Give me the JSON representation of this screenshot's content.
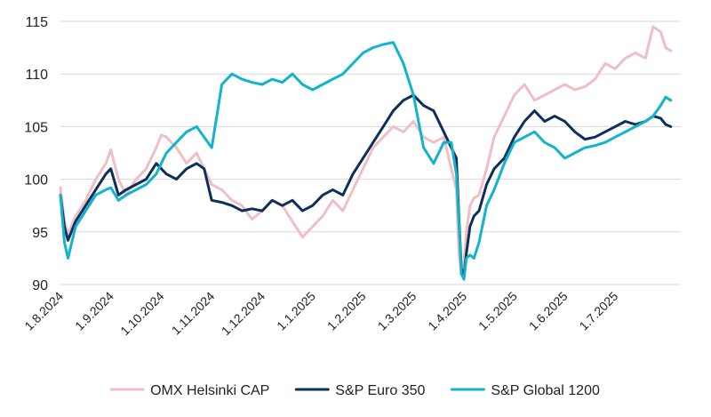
{
  "chart_data": {
    "type": "line",
    "title": "",
    "xlabel": "",
    "ylabel": "",
    "ylim": [
      90,
      115
    ],
    "yticks": [
      90,
      95,
      100,
      105,
      110,
      115
    ],
    "grid": "horizontal",
    "x_tick_labels": [
      "1.8.2024",
      "1.9.2024",
      "1.10.2024",
      "1.11.2024",
      "1.12.2024",
      "1.1.2025",
      "1.2.2025",
      "1.3.2025",
      "1.4.2025",
      "1.5.2025",
      "1.6.2025",
      "1.7.2025"
    ],
    "x_unit": "months since 1.8.2024",
    "x_range": [
      0,
      12.3
    ],
    "legend_position": "bottom",
    "series": [
      {
        "name": "OMX Helsinki CAP",
        "color": "#eebfc4",
        "x": [
          0,
          0.08,
          0.15,
          0.3,
          0.5,
          0.7,
          0.9,
          1.0,
          1.15,
          1.3,
          1.5,
          1.7,
          1.9,
          2.0,
          2.1,
          2.3,
          2.5,
          2.7,
          2.85,
          3.0,
          3.2,
          3.4,
          3.6,
          3.8,
          4.0,
          4.2,
          4.4,
          4.6,
          4.8,
          5.0,
          5.2,
          5.4,
          5.6,
          5.8,
          6.0,
          6.2,
          6.4,
          6.6,
          6.8,
          7.0,
          7.2,
          7.4,
          7.6,
          7.75,
          7.85,
          7.9,
          7.95,
          8.0,
          8.05,
          8.12,
          8.2,
          8.3,
          8.45,
          8.6,
          8.8,
          9.0,
          9.2,
          9.4,
          9.6,
          9.8,
          10.0,
          10.2,
          10.4,
          10.6,
          10.8,
          11.0,
          11.2,
          11.4,
          11.6,
          11.75,
          11.9,
          12.0,
          12.1
        ],
        "values": [
          99.2,
          96,
          94.8,
          96.5,
          98,
          100,
          101.5,
          102.8,
          100,
          98.5,
          100,
          101,
          103,
          104.2,
          104,
          103,
          101.5,
          102.5,
          101,
          99.5,
          99,
          98,
          97.5,
          96.2,
          97,
          98,
          97.5,
          96,
          94.5,
          95.5,
          96.5,
          98,
          97,
          99,
          101,
          103,
          104,
          105,
          104.5,
          105.5,
          104,
          103.5,
          104,
          101,
          99,
          93,
          91,
          92,
          95,
          97.5,
          98.2,
          98.5,
          101,
          104,
          106,
          108,
          109,
          107.5,
          108,
          108.5,
          109,
          108.5,
          108.8,
          109.5,
          111,
          110.5,
          111.5,
          112,
          111.5,
          114.5,
          114,
          112.5,
          112.2
        ]
      },
      {
        "name": "S&P Euro 350",
        "color": "#0d2f5a",
        "x": [
          0,
          0.08,
          0.15,
          0.3,
          0.5,
          0.7,
          0.9,
          1.0,
          1.15,
          1.3,
          1.5,
          1.7,
          1.9,
          2.0,
          2.1,
          2.3,
          2.5,
          2.7,
          2.85,
          3.0,
          3.2,
          3.4,
          3.6,
          3.8,
          4.0,
          4.2,
          4.4,
          4.6,
          4.8,
          5.0,
          5.2,
          5.4,
          5.6,
          5.8,
          6.0,
          6.2,
          6.4,
          6.6,
          6.8,
          7.0,
          7.2,
          7.4,
          7.6,
          7.75,
          7.85,
          7.9,
          7.95,
          8.0,
          8.05,
          8.12,
          8.2,
          8.3,
          8.45,
          8.6,
          8.8,
          9.0,
          9.2,
          9.4,
          9.6,
          9.8,
          10.0,
          10.2,
          10.4,
          10.6,
          10.8,
          11.0,
          11.2,
          11.4,
          11.6,
          11.75,
          11.9,
          12.0,
          12.1
        ],
        "values": [
          98.5,
          95.5,
          94.2,
          96,
          97.5,
          99,
          100.5,
          101,
          98.5,
          99,
          99.5,
          100,
          101.5,
          101,
          100.5,
          100,
          101,
          101.5,
          101,
          98,
          97.8,
          97.5,
          97,
          97.2,
          97,
          98,
          97.5,
          98,
          97,
          97.5,
          98.5,
          99,
          98.5,
          100.5,
          102,
          103.5,
          105,
          106.5,
          107.5,
          108,
          107,
          106.5,
          104.5,
          103,
          102,
          96.5,
          91.5,
          90.8,
          93,
          95.5,
          96.5,
          97,
          99.5,
          101,
          102,
          104,
          105.5,
          106.5,
          105.5,
          106,
          105.5,
          104.5,
          103.8,
          104,
          104.5,
          105,
          105.5,
          105.2,
          105.5,
          106,
          105.8,
          105.2,
          105
        ]
      },
      {
        "name": "S&P Global 1200",
        "color": "#12b4cb",
        "x": [
          0,
          0.08,
          0.15,
          0.3,
          0.5,
          0.7,
          0.9,
          1.0,
          1.15,
          1.3,
          1.5,
          1.7,
          1.9,
          2.0,
          2.1,
          2.3,
          2.5,
          2.7,
          2.85,
          3.0,
          3.2,
          3.4,
          3.6,
          3.8,
          4.0,
          4.2,
          4.4,
          4.6,
          4.8,
          5.0,
          5.2,
          5.4,
          5.6,
          5.8,
          6.0,
          6.2,
          6.4,
          6.6,
          6.8,
          7.0,
          7.2,
          7.4,
          7.6,
          7.75,
          7.85,
          7.9,
          7.95,
          8.0,
          8.05,
          8.12,
          8.2,
          8.3,
          8.45,
          8.6,
          8.8,
          9.0,
          9.2,
          9.4,
          9.6,
          9.8,
          10.0,
          10.2,
          10.4,
          10.6,
          10.8,
          11.0,
          11.2,
          11.4,
          11.6,
          11.75,
          11.9,
          12.0,
          12.1
        ],
        "values": [
          98.5,
          94,
          92.5,
          95.5,
          97,
          98.5,
          99,
          99.2,
          98,
          98.5,
          99,
          99.5,
          100.5,
          101.5,
          102.5,
          103.5,
          104.5,
          105,
          104,
          103,
          109,
          110,
          109.5,
          109.2,
          109,
          109.5,
          109.2,
          110,
          109,
          108.5,
          109,
          109.5,
          110,
          111,
          112,
          112.5,
          112.8,
          113,
          111,
          108,
          103,
          101.5,
          103.5,
          103.5,
          100.5,
          96,
          91,
          90.5,
          92.5,
          92.8,
          92.5,
          94,
          97.5,
          99,
          101.5,
          103.5,
          104,
          104.5,
          103.5,
          103,
          102,
          102.5,
          103,
          103.2,
          103.5,
          104,
          104.5,
          105,
          105.5,
          106,
          107,
          107.8,
          107.5
        ]
      }
    ]
  }
}
